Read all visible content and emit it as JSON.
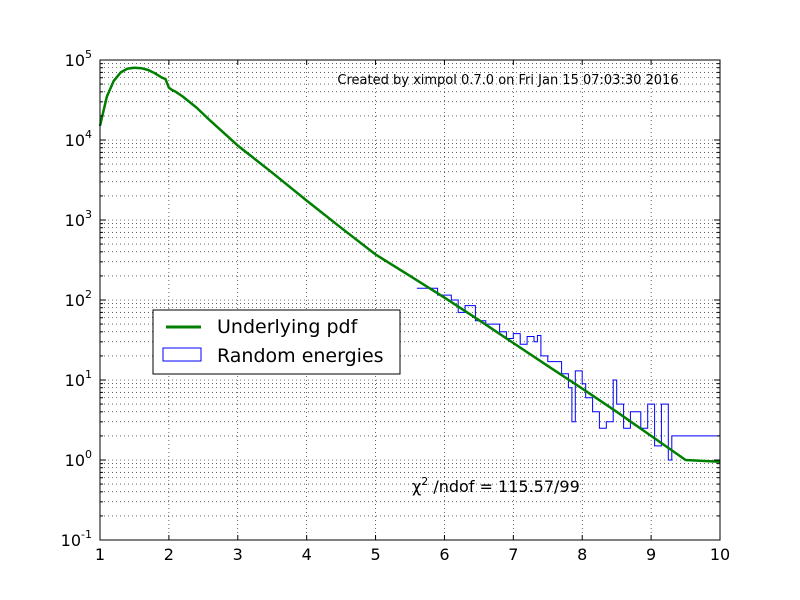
{
  "chart_data": {
    "type": "line",
    "title": "",
    "xlabel": "",
    "ylabel": "",
    "xlim": [
      1,
      10
    ],
    "ylim": [
      0.1,
      100000
    ],
    "yscale": "log",
    "grid": true,
    "legend_position": "center-left",
    "x_ticks": [
      "1",
      "2",
      "3",
      "4",
      "5",
      "6",
      "7",
      "8",
      "9",
      "10"
    ],
    "y_ticks": [
      {
        "base": "10",
        "exp": "-1"
      },
      {
        "base": "10",
        "exp": "0"
      },
      {
        "base": "10",
        "exp": "1"
      },
      {
        "base": "10",
        "exp": "2"
      },
      {
        "base": "10",
        "exp": "3"
      },
      {
        "base": "10",
        "exp": "4"
      },
      {
        "base": "10",
        "exp": "5"
      }
    ],
    "annotations": {
      "created_by": "Created by ximpol 0.7.0 on Fri Jan 15 07:03:30 2016",
      "chi_symbol": "χ",
      "chi_sup": "2",
      "chi_rest": " /ndof = 115.57/99"
    },
    "series": [
      {
        "name": "Underlying pdf",
        "kind": "line",
        "color": "#007f00",
        "x": [
          1.0,
          1.1,
          1.2,
          1.3,
          1.4,
          1.5,
          1.6,
          1.7,
          1.8,
          1.9,
          1.95,
          2.0,
          2.05,
          2.1,
          2.2,
          2.4,
          2.6,
          2.8,
          3.0,
          3.5,
          4.0,
          4.5,
          5.0,
          5.5,
          6.0,
          6.5,
          7.0,
          7.5,
          8.0,
          8.5,
          9.0,
          9.5,
          10.0
        ],
        "y": [
          15000,
          35000,
          55000,
          70000,
          78000,
          80000,
          79000,
          75000,
          68000,
          60000,
          58000,
          45000,
          42000,
          40000,
          35000,
          25500,
          17500,
          12200,
          8500,
          3900,
          1750,
          800,
          370,
          200,
          107,
          56,
          29,
          15,
          7.8,
          4.0,
          2.0,
          1.0,
          0.95
        ]
      },
      {
        "name": "Random energies",
        "kind": "step",
        "color": "#0000ff",
        "bin_edges": [
          5.6,
          5.9,
          6.1,
          6.2,
          6.3,
          6.45,
          6.6,
          6.8,
          6.9,
          7.0,
          7.1,
          7.2,
          7.3,
          7.35,
          7.4,
          7.5,
          7.7,
          7.8,
          7.85,
          7.9,
          8.0,
          8.05,
          8.15,
          8.25,
          8.35,
          8.45,
          8.5,
          8.6,
          8.7,
          8.85,
          8.95,
          9.05,
          9.15,
          9.25,
          9.3,
          9.8,
          10.0
        ],
        "counts": [
          140,
          115,
          100,
          70,
          85,
          55,
          50,
          40,
          33,
          38,
          28,
          35,
          30,
          36,
          20,
          17,
          12,
          8,
          3,
          13,
          9,
          6,
          4,
          2.5,
          3,
          10,
          5,
          2.5,
          4,
          2.5,
          5,
          1.5,
          5,
          1,
          2,
          2
        ]
      }
    ]
  }
}
